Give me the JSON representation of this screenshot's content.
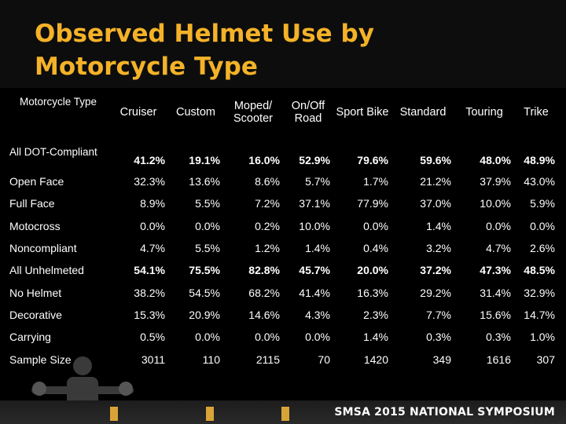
{
  "title": "Observed Helmet Use by Motorcycle Type",
  "footer": "SMSA 2015 NATIONAL SYMPOSIUM",
  "columns": [
    "Motorcycle Type",
    "Cruiser",
    "Custom",
    "Moped/ Scooter",
    "On/Off Road",
    "Sport Bike",
    "Standard",
    "Touring",
    "Trike"
  ],
  "rows": [
    {
      "label": "All DOT-Compliant",
      "values": [
        "41.2%",
        "19.1%",
        "16.0%",
        "52.9%",
        "79.6%",
        "59.6%",
        "48.0%",
        "48.9%"
      ]
    },
    {
      "label": "Open Face",
      "values": [
        "32.3%",
        "13.6%",
        "8.6%",
        "5.7%",
        "1.7%",
        "21.2%",
        "37.9%",
        "43.0%"
      ]
    },
    {
      "label": "Full Face",
      "values": [
        "8.9%",
        "5.5%",
        "7.2%",
        "37.1%",
        "77.9%",
        "37.0%",
        "10.0%",
        "5.9%"
      ]
    },
    {
      "label": "Motocross",
      "values": [
        "0.0%",
        "0.0%",
        "0.2%",
        "10.0%",
        "0.0%",
        "1.4%",
        "0.0%",
        "0.0%"
      ]
    },
    {
      "label": "Noncompliant",
      "values": [
        "4.7%",
        "5.5%",
        "1.2%",
        "1.4%",
        "0.4%",
        "3.2%",
        "4.7%",
        "2.6%"
      ]
    },
    {
      "label": "All Unhelmeted",
      "values": [
        "54.1%",
        "75.5%",
        "82.8%",
        "45.7%",
        "20.0%",
        "37.2%",
        "47.3%",
        "48.5%"
      ]
    },
    {
      "label": "No Helmet",
      "values": [
        "38.2%",
        "54.5%",
        "68.2%",
        "41.4%",
        "16.3%",
        "29.2%",
        "31.4%",
        "32.9%"
      ]
    },
    {
      "label": "Decorative",
      "values": [
        "15.3%",
        "20.9%",
        "14.6%",
        "4.3%",
        "2.3%",
        "7.7%",
        "15.6%",
        "14.7%"
      ]
    },
    {
      "label": "Carrying",
      "values": [
        "0.5%",
        "0.0%",
        "0.0%",
        "0.0%",
        "1.4%",
        "0.3%",
        "0.3%",
        "1.0%"
      ]
    },
    {
      "label": "Sample Size",
      "values": [
        "3011",
        "110",
        "2115",
        "70",
        "1420",
        "349",
        "1616",
        "307"
      ]
    }
  ],
  "colors": {
    "title": "#f4b228",
    "background": "#000000",
    "text": "#ffffff"
  }
}
